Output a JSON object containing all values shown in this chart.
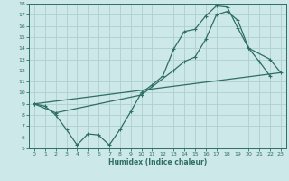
{
  "title": "",
  "xlabel": "Humidex (Indice chaleur)",
  "bg_color": "#cde8e8",
  "grid_color": "#aed0d0",
  "line_color": "#2e6e65",
  "xlim": [
    -0.5,
    23.5
  ],
  "ylim": [
    5,
    18
  ],
  "yticks": [
    5,
    6,
    7,
    8,
    9,
    10,
    11,
    12,
    13,
    14,
    15,
    16,
    17,
    18
  ],
  "xticks": [
    0,
    1,
    2,
    3,
    4,
    5,
    6,
    7,
    8,
    9,
    10,
    11,
    12,
    13,
    14,
    15,
    16,
    17,
    18,
    19,
    20,
    21,
    22,
    23
  ],
  "line1_x": [
    0,
    1,
    2,
    3,
    4,
    5,
    6,
    7,
    8,
    9,
    10,
    11,
    12,
    13,
    14,
    15,
    16,
    17,
    18,
    19,
    20,
    21,
    22
  ],
  "line1_y": [
    9.0,
    8.8,
    8.0,
    6.7,
    5.3,
    6.3,
    6.2,
    5.3,
    6.7,
    8.3,
    10.0,
    10.7,
    11.5,
    13.9,
    15.5,
    15.7,
    16.9,
    17.8,
    17.7,
    15.8,
    14.0,
    12.8,
    11.5
  ],
  "line2_x": [
    0,
    2,
    10,
    13,
    14,
    15,
    16,
    17,
    18,
    19,
    20,
    22,
    23
  ],
  "line2_y": [
    9.0,
    8.2,
    9.8,
    12.0,
    12.8,
    13.2,
    14.8,
    17.0,
    17.3,
    16.5,
    14.0,
    13.0,
    11.8
  ],
  "line3_x": [
    0,
    23
  ],
  "line3_y": [
    9.0,
    11.8
  ]
}
